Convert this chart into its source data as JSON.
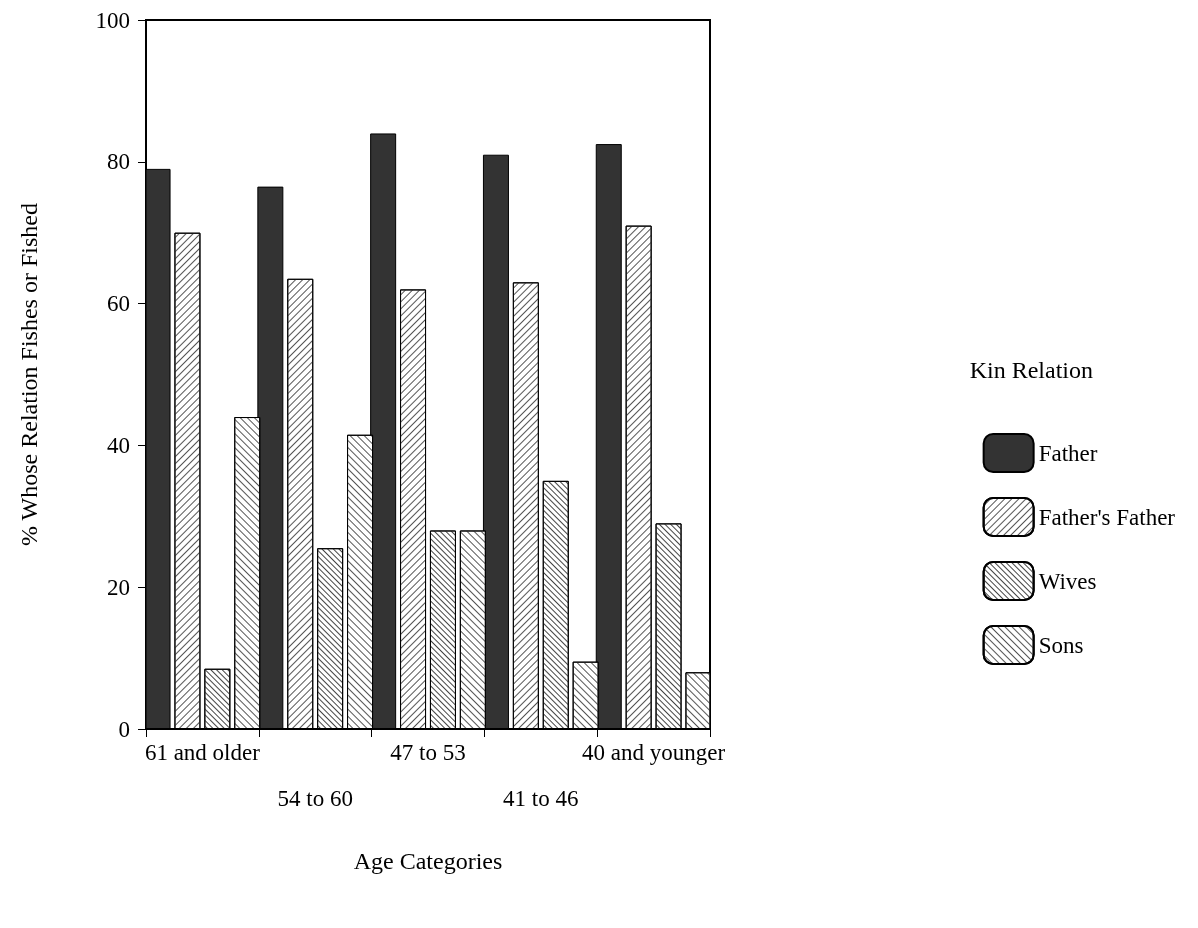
{
  "chart_data": {
    "type": "bar",
    "xlabel": "Age Categories",
    "ylabel": "% Whose Relation Fishes or Fished",
    "legend_title": "Kin Relation",
    "categories": [
      "61 and older",
      "54 to 60",
      "47 to 53",
      "41 to 46",
      "40 and younger"
    ],
    "series": [
      {
        "name": "Father",
        "color": "#333333",
        "values": [
          79,
          76.5,
          84,
          81,
          82.5
        ]
      },
      {
        "name": "Father's Father",
        "color": "#ffffff",
        "values": [
          70,
          63.5,
          62,
          63,
          71
        ]
      },
      {
        "name": "Wives",
        "color": "#ffffff",
        "values": [
          8.5,
          25.5,
          28,
          35,
          29
        ]
      },
      {
        "name": "Sons",
        "color": "#ffffff",
        "values": [
          44,
          41.5,
          28,
          9.5,
          8
        ]
      }
    ],
    "ylim": [
      0,
      100
    ],
    "yticks": [
      0,
      20,
      40,
      60,
      80,
      100
    ],
    "grid": false,
    "legend": "right"
  }
}
